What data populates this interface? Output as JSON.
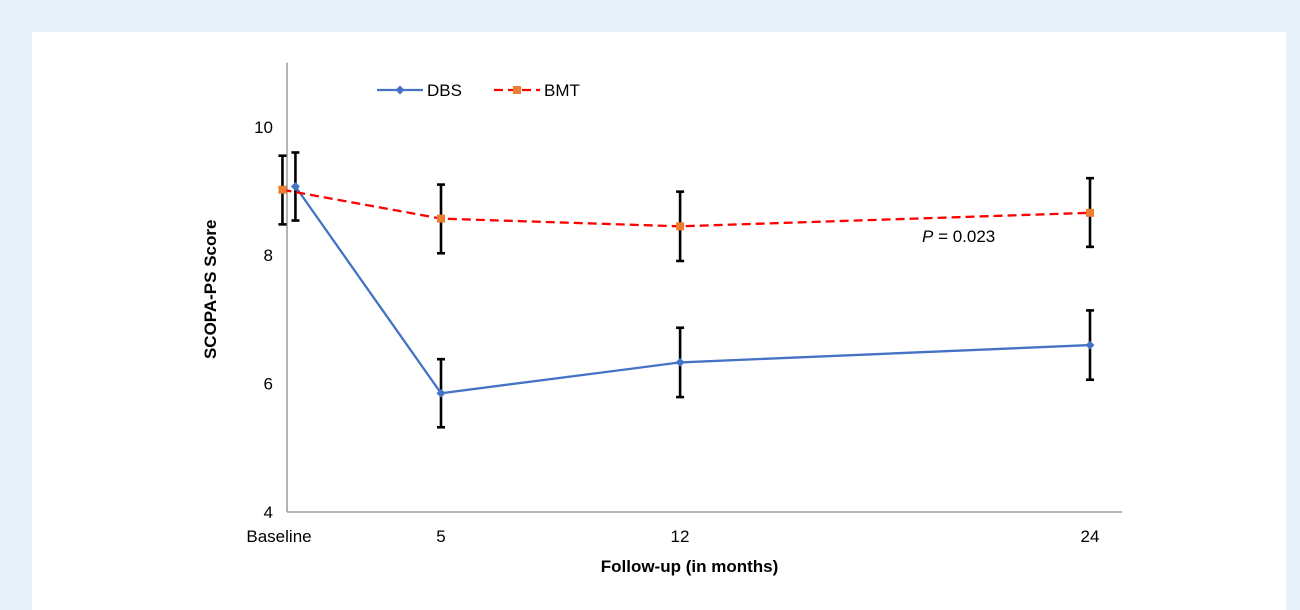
{
  "chart_data": {
    "type": "line",
    "x_categories": [
      "Baseline",
      "5",
      "12",
      "24"
    ],
    "xlabel": "Follow-up (in months)",
    "ylabel": "SCOPA-PS Score",
    "ylim": [
      4,
      11
    ],
    "yticks": [
      4,
      6,
      8,
      10
    ],
    "grid": false,
    "legend_position": "top-left",
    "series": [
      {
        "name": "DBS",
        "color": "#4472c4",
        "line_style": "solid",
        "marker": "diamond",
        "x": [
          0.18,
          5,
          12,
          24
        ],
        "values": [
          9.07,
          5.85,
          6.33,
          6.6
        ],
        "error_low": [
          8.54,
          5.32,
          5.79,
          6.06
        ],
        "error_high": [
          9.6,
          6.38,
          6.87,
          7.14
        ]
      },
      {
        "name": "BMT",
        "color": "#ff0000",
        "marker_color": "#ed7d31",
        "line_style": "dashed",
        "marker": "square",
        "x": [
          -0.25,
          5,
          12,
          24
        ],
        "values": [
          9.02,
          8.57,
          8.45,
          8.66
        ],
        "error_low": [
          8.48,
          8.03,
          7.91,
          8.13
        ],
        "error_high": [
          9.55,
          9.1,
          8.99,
          9.2
        ]
      }
    ],
    "annotation": {
      "italic": "P",
      "rest": " = 0.023"
    }
  }
}
